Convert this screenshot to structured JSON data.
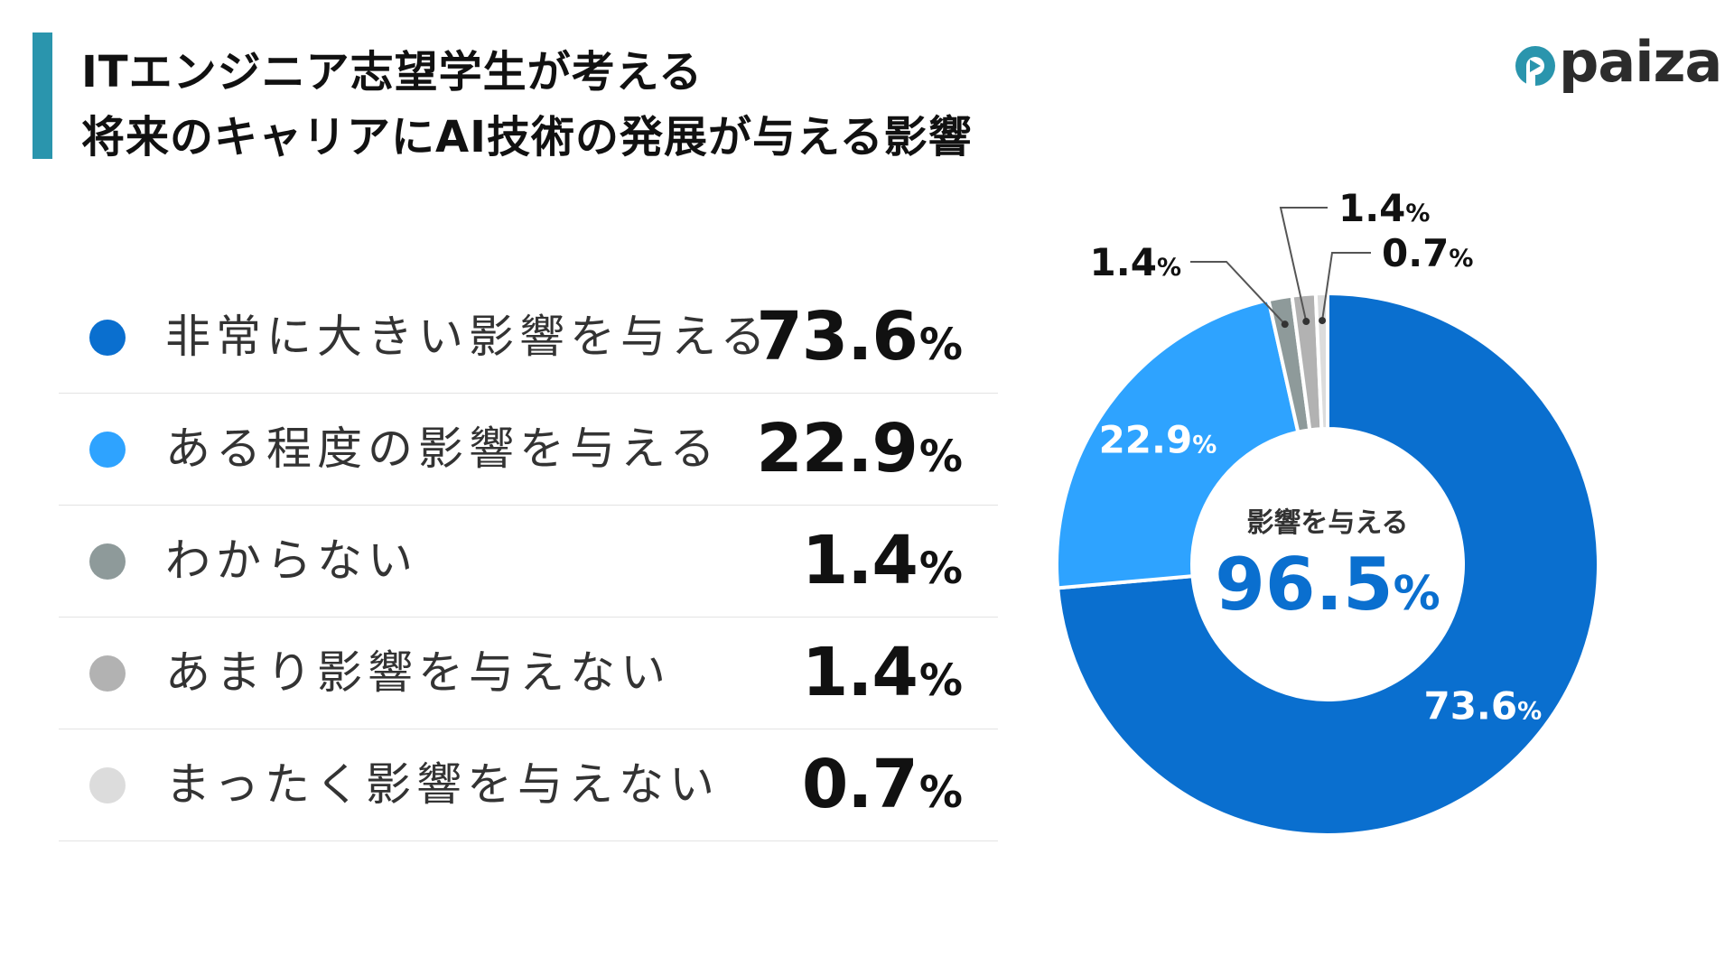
{
  "title": {
    "line1": "ITエンジニア志望学生が考える",
    "line2": "将来のキャリアにAI技術の発展が与える影響"
  },
  "logo": {
    "text": "paiza",
    "color": "#2a95ad"
  },
  "percent_sign": "%",
  "legend": [
    {
      "label": "非常に大きい影響を与える",
      "value": "73.6",
      "color": "#0a6fcf"
    },
    {
      "label": "ある程度の影響を与える",
      "value": "22.9",
      "color": "#2ea3ff"
    },
    {
      "label": "わからない",
      "value": "1.4",
      "color": "#8e9a9a"
    },
    {
      "label": "あまり影響を与えない",
      "value": "1.4",
      "color": "#b2b2b2"
    },
    {
      "label": "まったく影響を与えない",
      "value": "0.7",
      "color": "#dcdcdc"
    }
  ],
  "chart_data": {
    "type": "pie",
    "variant": "donut",
    "title": "",
    "categories": [
      "非常に大きい影響を与える",
      "ある程度の影響を与える",
      "わからない",
      "あまり影響を与えない",
      "まったく影響を与えない"
    ],
    "values": [
      73.6,
      22.9,
      1.4,
      1.4,
      0.7
    ],
    "colors": [
      "#0a6fcf",
      "#2ea3ff",
      "#8e9a9a",
      "#b2b2b2",
      "#dcdcdc"
    ],
    "slice_labels": [
      "73.6",
      "22.9",
      "1.4",
      "1.4",
      "0.7"
    ],
    "center_label": "影響を与える",
    "center_value": "96.5",
    "center_color": "#0a6fcf",
    "legend": "left"
  }
}
